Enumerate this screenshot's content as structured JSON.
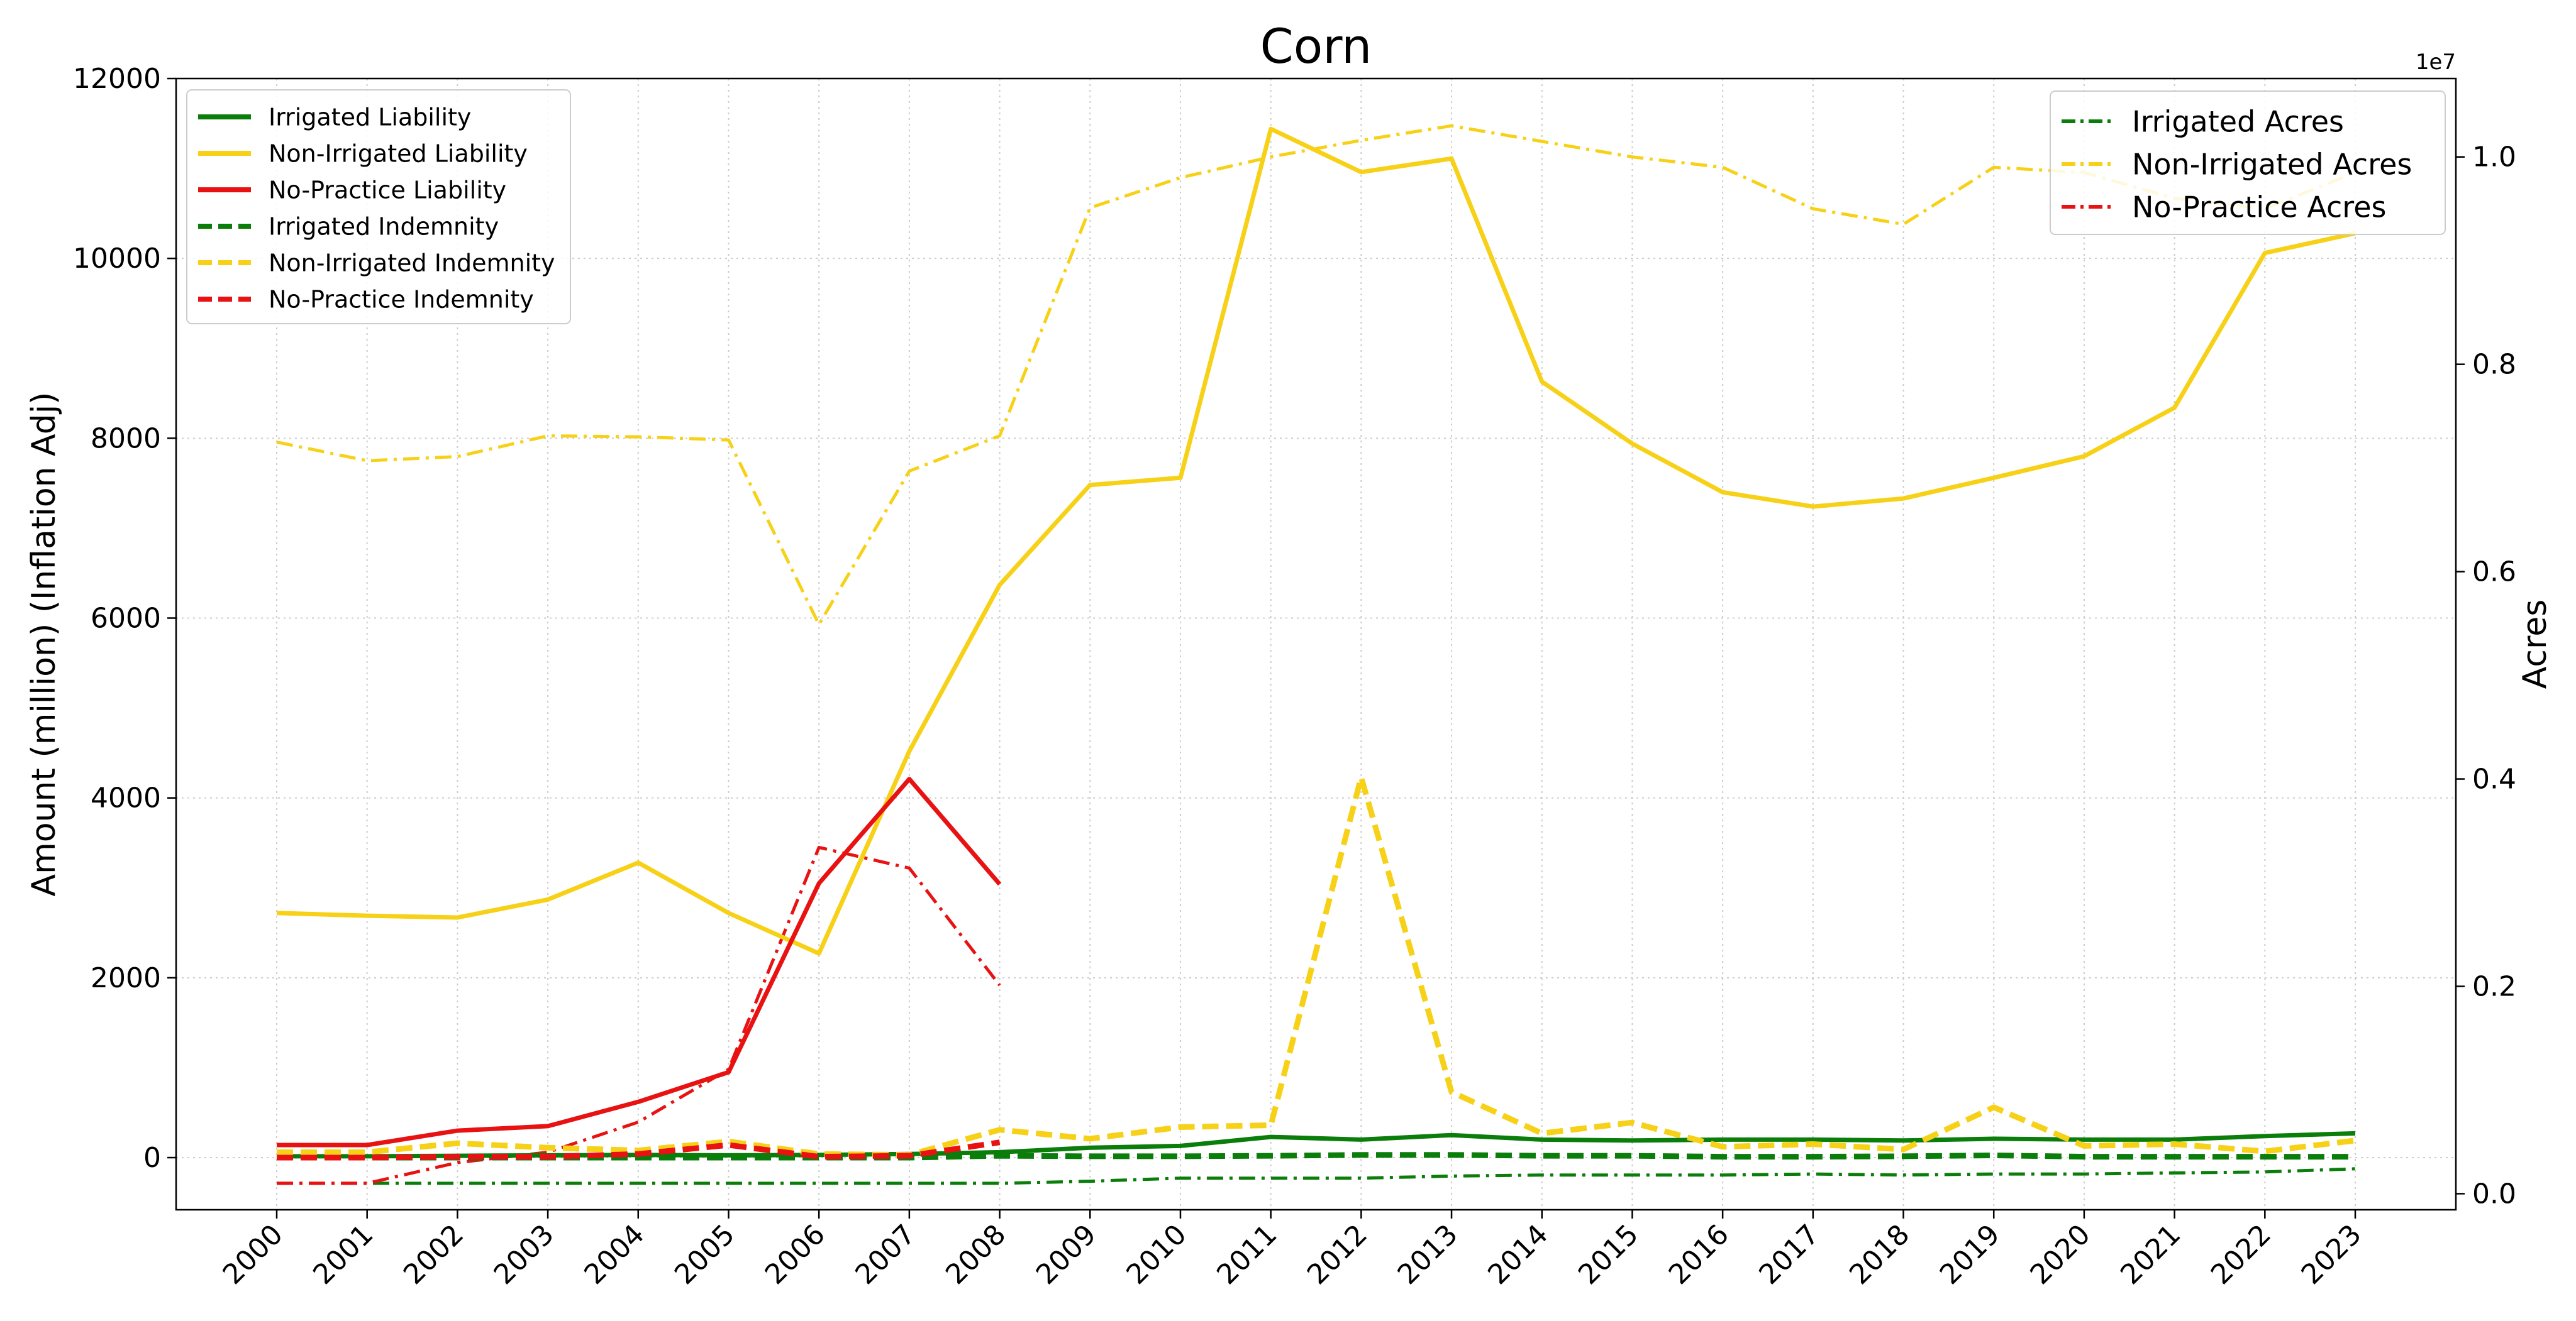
{
  "chart_data": {
    "type": "line",
    "title": "Corn",
    "ylabel": "Amount (million) (Inflation Adj)",
    "y2label": "Acres",
    "y2_offset_label": "1e7",
    "x": [
      2000,
      2001,
      2002,
      2003,
      2004,
      2005,
      2006,
      2007,
      2008,
      2009,
      2010,
      2011,
      2012,
      2013,
      2014,
      2015,
      2016,
      2017,
      2018,
      2019,
      2020,
      2021,
      2022,
      2023
    ],
    "x_tick_labels": [
      "2000",
      "2001",
      "2002",
      "2003",
      "2004",
      "2005",
      "2006",
      "2007",
      "2008",
      "2009",
      "2010",
      "2011",
      "2012",
      "2013",
      "2014",
      "2015",
      "2016",
      "2017",
      "2018",
      "2019",
      "2020",
      "2021",
      "2022",
      "2023"
    ],
    "ylim": [
      -580,
      12000
    ],
    "y_ticks": [
      0,
      2000,
      4000,
      6000,
      8000,
      10000,
      12000
    ],
    "y_tick_labels": [
      "0",
      "2000",
      "4000",
      "6000",
      "8000",
      "10000",
      "12000"
    ],
    "y2lim": [
      -0.0155,
      1.0756
    ],
    "y2_ticks": [
      0.0,
      0.2,
      0.4,
      0.6,
      0.8,
      1.0
    ],
    "y2_tick_labels": [
      "0.0",
      "0.2",
      "0.4",
      "0.6",
      "0.8",
      "1.0"
    ],
    "grid": true,
    "legend_left_placement": "top-left",
    "legend_right_placement": "top-right",
    "colors": {
      "green": "#0a7d0a",
      "yellow": "#f7d117",
      "red": "#e81212"
    },
    "series": [
      {
        "name": "Irrigated Liability",
        "axis": "left",
        "color": "#0a7d0a",
        "style": "solid",
        "values": [
          15,
          15,
          20,
          25,
          30,
          25,
          30,
          40,
          60,
          110,
          130,
          230,
          200,
          250,
          200,
          190,
          200,
          200,
          190,
          210,
          200,
          200,
          240,
          270
        ]
      },
      {
        "name": "Non-Irrigated Liability",
        "axis": "left",
        "color": "#f7d117",
        "style": "solid",
        "values": [
          2720,
          2690,
          2670,
          2870,
          3280,
          2720,
          2270,
          4520,
          6370,
          7480,
          7560,
          11440,
          10960,
          11110,
          8630,
          7940,
          7400,
          7240,
          7330,
          7560,
          7800,
          8340,
          10060,
          10280
        ]
      },
      {
        "name": "No-Practice Liability",
        "axis": "left",
        "color": "#e81212",
        "style": "solid",
        "values": [
          140,
          140,
          300,
          350,
          620,
          950,
          3050,
          4210,
          3040,
          null,
          null,
          null,
          null,
          null,
          null,
          null,
          null,
          null,
          null,
          null,
          null,
          null,
          null,
          null
        ]
      },
      {
        "name": "Irrigated Indemnity",
        "axis": "left",
        "color": "#0a7d0a",
        "style": "dashed",
        "values": [
          0,
          0,
          0,
          0,
          0,
          0,
          0,
          0,
          20,
          15,
          15,
          20,
          30,
          30,
          20,
          20,
          10,
          10,
          15,
          25,
          10,
          10,
          10,
          10
        ]
      },
      {
        "name": "Non-Irrigated Indemnity",
        "axis": "left",
        "color": "#f7d117",
        "style": "dashed",
        "values": [
          60,
          60,
          160,
          110,
          80,
          180,
          40,
          30,
          310,
          210,
          340,
          360,
          4230,
          730,
          270,
          390,
          120,
          150,
          90,
          560,
          130,
          150,
          70,
          190
        ]
      },
      {
        "name": "No-Practice Indemnity",
        "axis": "left",
        "color": "#e81212",
        "style": "dashed",
        "values": [
          0,
          0,
          10,
          10,
          40,
          140,
          10,
          20,
          170,
          null,
          null,
          null,
          null,
          null,
          null,
          null,
          null,
          null,
          null,
          null,
          null,
          null,
          null,
          null
        ]
      },
      {
        "name": "Irrigated Acres",
        "axis": "right",
        "color": "#0a7d0a",
        "style": "dashdot",
        "values": [
          0.01,
          0.01,
          0.01,
          0.01,
          0.01,
          0.01,
          0.01,
          0.01,
          0.01,
          0.012,
          0.015,
          0.015,
          0.015,
          0.017,
          0.018,
          0.018,
          0.018,
          0.019,
          0.018,
          0.019,
          0.019,
          0.02,
          0.021,
          0.024
        ]
      },
      {
        "name": "Non-Irrigated Acres",
        "axis": "right",
        "color": "#f7d117",
        "style": "dashdot",
        "values": [
          0.725,
          0.707,
          0.711,
          0.731,
          0.73,
          0.727,
          0.549,
          0.697,
          0.731,
          0.951,
          0.98,
          1.0,
          1.016,
          1.03,
          1.015,
          1.0,
          0.99,
          0.95,
          0.935,
          0.99,
          0.985,
          0.96,
          0.95,
          0.985
        ]
      },
      {
        "name": "No-Practice Acres",
        "axis": "right",
        "color": "#e81212",
        "style": "dashdot",
        "values": [
          0.01,
          0.01,
          0.03,
          0.04,
          0.069,
          0.12,
          0.334,
          0.314,
          0.201,
          null,
          null,
          null,
          null,
          null,
          null,
          null,
          null,
          null,
          null,
          null,
          null,
          null,
          null,
          null
        ]
      }
    ]
  }
}
